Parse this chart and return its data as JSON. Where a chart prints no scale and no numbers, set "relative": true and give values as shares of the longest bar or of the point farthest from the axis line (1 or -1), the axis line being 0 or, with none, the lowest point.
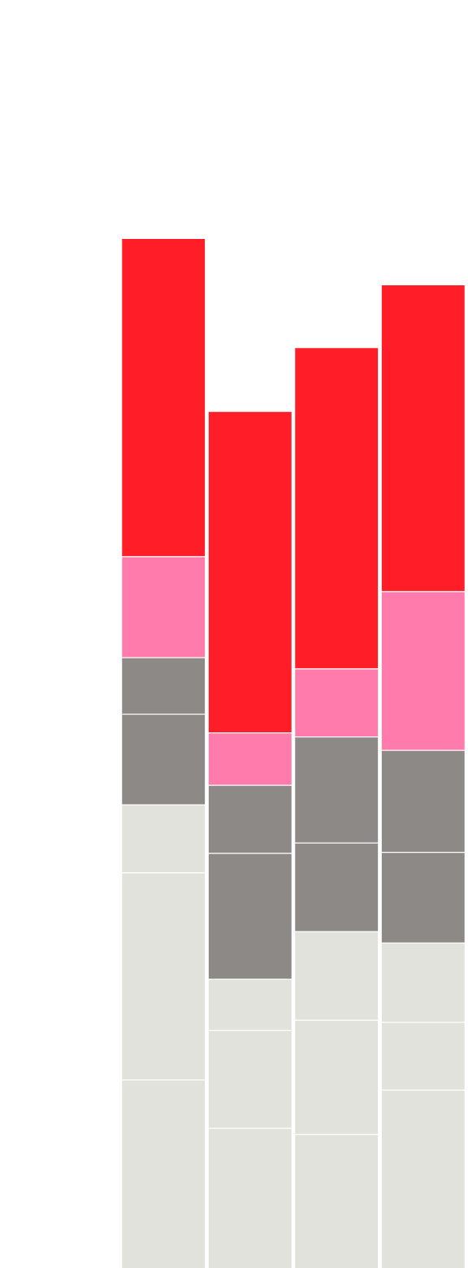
{
  "chart_data": {
    "type": "bar",
    "stacked": true,
    "relative": true,
    "legend": false,
    "categories": [
      null,
      null,
      null,
      null
    ],
    "series": [
      {
        "color": "#e2e2dc",
        "values": [
          0.183,
          0.136,
          0.13,
          0.173
        ]
      },
      {
        "color": "#e2e2dc",
        "values": [
          0.201,
          0.095,
          0.111,
          0.066
        ]
      },
      {
        "color": "#e2e2dc",
        "values": [
          0.066,
          0.05,
          0.086,
          0.077
        ]
      },
      {
        "color": "#8c8987",
        "values": [
          0.088,
          0.122,
          0.086,
          0.088
        ]
      },
      {
        "color": "#8c8987",
        "values": [
          0.055,
          0.066,
          0.103,
          0.099
        ]
      },
      {
        "color": "#ff7bab",
        "values": [
          0.098,
          0.051,
          0.066,
          0.154
        ]
      },
      {
        "color": "#ff1e27",
        "values": [
          0.309,
          0.312,
          0.312,
          0.298
        ]
      }
    ]
  }
}
